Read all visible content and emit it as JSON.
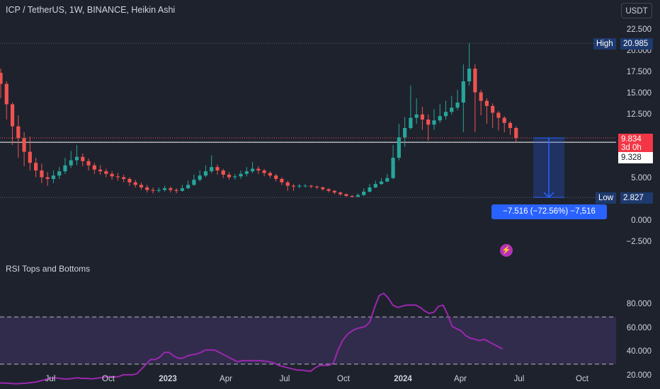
{
  "header": {
    "title": "ICP / TetherUS, 1W, BINANCE, Heikin Ashi"
  },
  "currency_button": "USDT",
  "price_axis": {
    "ticks": [
      "22.500",
      "20.000",
      "17.500",
      "15.000",
      "12.500",
      "5.000",
      "0.000",
      "−2.500"
    ]
  },
  "rsi_axis": {
    "ticks": [
      "80.000",
      "60.000",
      "40.000",
      "20.000"
    ]
  },
  "time_axis": [
    "Jul",
    "Oct",
    "2023",
    "Apr",
    "Jul",
    "Oct",
    "2024",
    "Apr",
    "Jul",
    "Oct"
  ],
  "labels": {
    "high_text": "High",
    "high_value": "20.985",
    "low_text": "Low",
    "low_value": "2.827",
    "last_price": "9.834",
    "countdown": "3d 0h",
    "prev_close": "9.328"
  },
  "measure_label": "−7.516 (−72.56%) −7,516",
  "rsi_indicator": {
    "title": "RSI Tops and Bottoms"
  },
  "colors": {
    "up": "#26a69a",
    "down": "#ef5350",
    "rsi": "#9c27b0",
    "background": "#1e222d",
    "measure": "#2962ff",
    "high_low_badge": "#1e3a6e"
  },
  "chart_data": [
    {
      "type": "candlestick",
      "title": "ICP / TetherUS, 1W, BINANCE, Heikin Ashi",
      "ylim": [
        -3.5,
        24
      ],
      "high": 20.985,
      "low": 2.827,
      "last": 9.834,
      "prev_close": 9.328,
      "candles": [
        [
          17.5,
          16.2,
          18.0,
          14.5
        ],
        [
          16.2,
          13.8,
          16.5,
          12.0
        ],
        [
          13.8,
          11.2,
          14.0,
          9.0
        ],
        [
          11.2,
          9.8,
          12.5,
          7.5
        ],
        [
          9.8,
          8.2,
          10.5,
          6.5
        ],
        [
          8.2,
          6.9,
          10.0,
          6.0
        ],
        [
          6.9,
          6.0,
          7.5,
          5.2
        ],
        [
          6.0,
          5.2,
          6.8,
          4.5
        ],
        [
          5.2,
          5.0,
          5.8,
          4.2
        ],
        [
          5.0,
          5.4,
          6.0,
          4.5
        ],
        [
          5.4,
          5.9,
          6.4,
          5.0
        ],
        [
          5.9,
          6.6,
          7.5,
          5.6
        ],
        [
          6.6,
          7.2,
          8.3,
          6.3
        ],
        [
          7.2,
          7.6,
          9.0,
          6.6
        ],
        [
          7.6,
          7.1,
          8.0,
          6.5
        ],
        [
          7.1,
          6.6,
          7.4,
          6.0
        ],
        [
          6.6,
          6.1,
          6.9,
          5.6
        ],
        [
          6.1,
          5.9,
          6.6,
          5.5
        ],
        [
          5.9,
          5.6,
          6.2,
          5.2
        ],
        [
          5.6,
          5.3,
          5.9,
          4.9
        ],
        [
          5.3,
          5.2,
          5.7,
          4.8
        ],
        [
          5.2,
          5.0,
          5.5,
          4.6
        ],
        [
          5.0,
          4.6,
          5.2,
          4.2
        ],
        [
          4.6,
          4.3,
          4.9,
          4.0
        ],
        [
          4.3,
          4.0,
          4.6,
          3.7
        ],
        [
          4.0,
          3.7,
          4.3,
          3.4
        ],
        [
          3.7,
          3.6,
          4.0,
          3.3
        ],
        [
          3.6,
          3.7,
          4.0,
          3.4
        ],
        [
          3.7,
          3.9,
          4.2,
          3.5
        ],
        [
          3.9,
          3.7,
          4.1,
          3.4
        ],
        [
          3.7,
          3.6,
          3.9,
          3.3
        ],
        [
          3.6,
          3.9,
          4.3,
          3.5
        ],
        [
          3.9,
          4.3,
          4.8,
          3.8
        ],
        [
          4.3,
          4.9,
          5.5,
          4.2
        ],
        [
          4.9,
          5.4,
          6.0,
          4.7
        ],
        [
          5.4,
          5.9,
          6.6,
          5.2
        ],
        [
          5.9,
          6.4,
          7.8,
          5.7
        ],
        [
          6.4,
          6.0,
          6.7,
          5.5
        ],
        [
          6.0,
          5.5,
          6.2,
          5.1
        ],
        [
          5.5,
          5.2,
          5.8,
          4.9
        ],
        [
          5.2,
          5.3,
          5.6,
          4.9
        ],
        [
          5.3,
          5.6,
          6.0,
          5.0
        ],
        [
          5.6,
          5.9,
          6.4,
          5.3
        ],
        [
          5.9,
          6.2,
          7.0,
          5.7
        ],
        [
          6.2,
          6.0,
          6.5,
          5.6
        ],
        [
          6.0,
          5.7,
          6.2,
          5.3
        ],
        [
          5.7,
          5.4,
          5.9,
          5.1
        ],
        [
          5.4,
          5.0,
          5.6,
          4.7
        ],
        [
          5.0,
          4.6,
          5.2,
          4.3
        ],
        [
          4.6,
          4.2,
          4.8,
          3.6
        ],
        [
          4.2,
          4.1,
          4.4,
          3.6
        ],
        [
          4.1,
          4.2,
          4.4,
          3.9
        ],
        [
          4.2,
          4.2,
          4.4,
          4.0
        ],
        [
          4.2,
          4.1,
          4.3,
          3.9
        ],
        [
          4.1,
          4.0,
          4.2,
          3.8
        ],
        [
          4.0,
          3.8,
          4.1,
          3.6
        ],
        [
          3.8,
          3.6,
          3.9,
          3.4
        ],
        [
          3.6,
          3.4,
          3.7,
          3.2
        ],
        [
          3.4,
          3.2,
          3.5,
          3.0
        ],
        [
          3.2,
          3.0,
          3.3,
          2.9
        ],
        [
          3.0,
          2.9,
          3.1,
          2.83
        ],
        [
          2.9,
          3.1,
          3.3,
          2.85
        ],
        [
          3.1,
          3.5,
          3.9,
          3.0
        ],
        [
          3.5,
          4.0,
          4.4,
          3.4
        ],
        [
          4.0,
          4.4,
          4.8,
          3.9
        ],
        [
          4.4,
          4.7,
          5.1,
          4.3
        ],
        [
          4.7,
          5.1,
          5.6,
          4.6
        ],
        [
          5.1,
          7.5,
          9.0,
          5.0
        ],
        [
          7.5,
          9.9,
          11.5,
          7.2
        ],
        [
          9.9,
          11.0,
          12.3,
          8.8
        ],
        [
          11.0,
          12.2,
          16.0,
          10.8
        ],
        [
          12.2,
          12.6,
          14.5,
          11.5
        ],
        [
          12.6,
          12.0,
          13.5,
          10.8
        ],
        [
          12.0,
          11.4,
          12.6,
          9.5
        ],
        [
          11.4,
          11.9,
          13.2,
          10.8
        ],
        [
          11.9,
          12.4,
          13.8,
          11.6
        ],
        [
          12.4,
          12.9,
          14.2,
          12.0
        ],
        [
          12.9,
          13.4,
          14.8,
          12.6
        ],
        [
          13.4,
          14.0,
          15.5,
          13.1
        ],
        [
          14.0,
          16.5,
          18.5,
          10.5
        ],
        [
          16.5,
          18.0,
          20.985,
          16.0
        ],
        [
          18.0,
          15.2,
          18.5,
          10.5
        ],
        [
          15.2,
          14.2,
          15.5,
          12.5
        ],
        [
          14.2,
          13.6,
          14.5,
          11.5
        ],
        [
          13.6,
          12.8,
          13.9,
          11.0
        ],
        [
          12.8,
          12.2,
          13.0,
          10.7
        ],
        [
          12.2,
          11.6,
          12.4,
          10.5
        ],
        [
          11.6,
          11.0,
          11.8,
          10.2
        ],
        [
          11.0,
          9.834,
          11.2,
          9.328
        ]
      ]
    },
    {
      "type": "line",
      "title": "RSI Tops and Bottoms",
      "ylim": [
        10,
        100
      ],
      "bands": [
        70,
        30
      ],
      "values": [
        14,
        14,
        13.8,
        13.5,
        13.5,
        13.8,
        14,
        14.5,
        15,
        16,
        17,
        18,
        18.5,
        18,
        17.5,
        17.5,
        18,
        18.5,
        18,
        18,
        17.5,
        18,
        18.5,
        19,
        19.5,
        19,
        19.5,
        21,
        21,
        21,
        22,
        26,
        30,
        34,
        34,
        36,
        40,
        40,
        37,
        35,
        35,
        37,
        38,
        38.5,
        40,
        42,
        42,
        42,
        40,
        38,
        36,
        34,
        32,
        33,
        33,
        33,
        33,
        33,
        32.5,
        32,
        31,
        29,
        28,
        27,
        26,
        25,
        25,
        24.5,
        24,
        27,
        29,
        29,
        29,
        31,
        42,
        50,
        55,
        58,
        60,
        61,
        62,
        66,
        78,
        88,
        90,
        86,
        80,
        78,
        79,
        80,
        80,
        80,
        78,
        75,
        73,
        74,
        79,
        80,
        72,
        62,
        60,
        58,
        54,
        52,
        51,
        50,
        51,
        49,
        47,
        45,
        43
      ]
    }
  ]
}
